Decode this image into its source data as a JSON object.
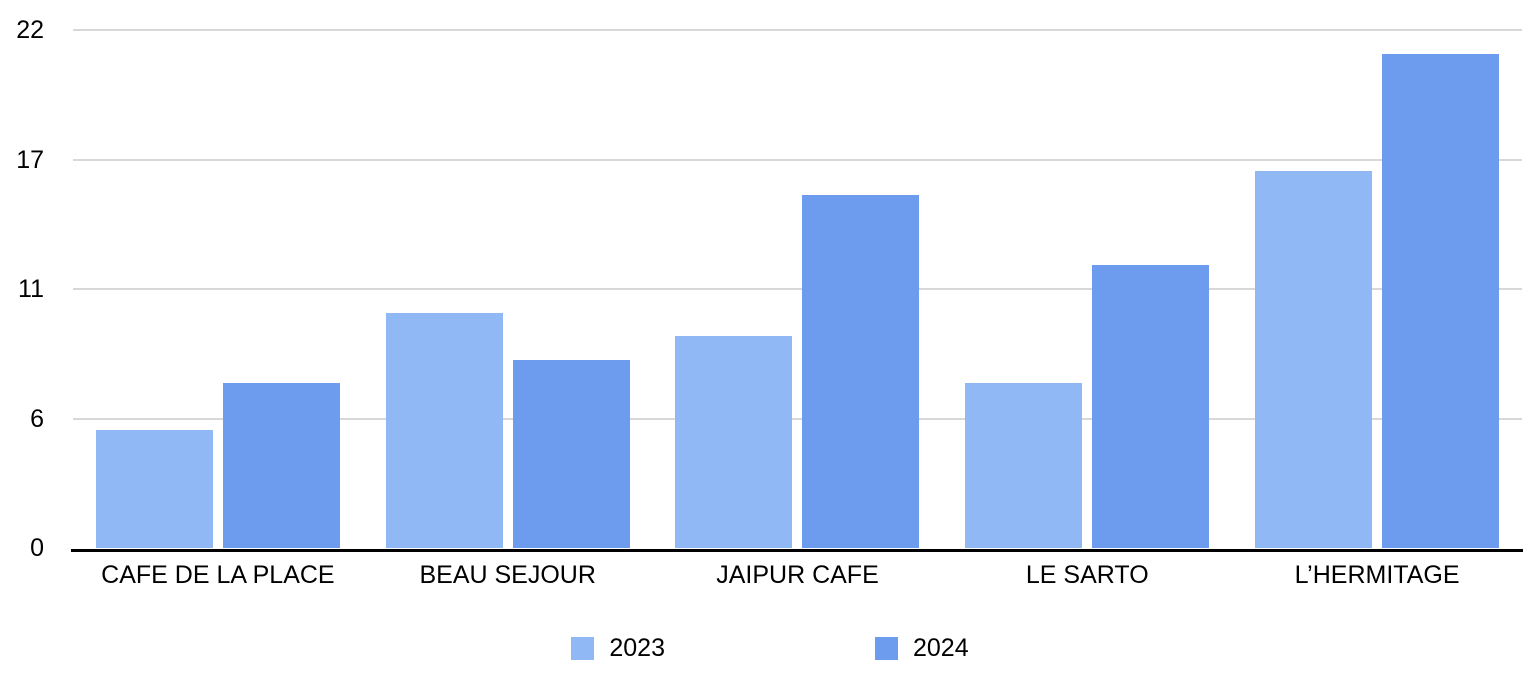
{
  "chart_data": {
    "type": "bar",
    "title": "",
    "xlabel": "",
    "ylabel": "",
    "grid": true,
    "legend_position": "bottom",
    "categories": [
      "CAFE DE LA PLACE",
      "BEAU SEJOUR",
      "JAIPUR CAFE",
      "LE SARTO",
      "L’HERMITAGE"
    ],
    "series": [
      {
        "name": "2023",
        "color": "#8FB8F4",
        "values": [
          5,
          10,
          9,
          7,
          16
        ]
      },
      {
        "name": "2024",
        "color": "#6D9BEE",
        "values": [
          7,
          8,
          15,
          12,
          21
        ]
      }
    ],
    "y_axis": {
      "min": 0,
      "max": 22,
      "tick_labels_top_to_bottom": [
        "22",
        "17",
        "11",
        "6",
        "0"
      ],
      "tick_values_top_to_bottom": [
        22,
        16.5,
        11,
        5.5,
        0
      ]
    }
  },
  "colors": {
    "background": "#ffffff",
    "gridline": "#d8d8d8",
    "axis_line": "#000000",
    "text": "#000000"
  }
}
